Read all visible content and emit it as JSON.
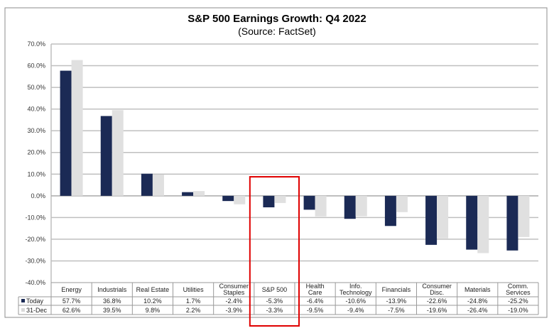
{
  "chart_data": {
    "type": "bar",
    "title": "S&P 500 Earnings Growth: Q4 2022",
    "subtitle": "(Source: FactSet)",
    "xlabel": "",
    "ylabel": "",
    "ylim": [
      -40,
      70
    ],
    "yticks": [
      70,
      60,
      50,
      40,
      30,
      20,
      10,
      0,
      -10,
      -20,
      -30,
      -40
    ],
    "ytick_labels": [
      "70.0%",
      "60.0%",
      "50.0%",
      "40.0%",
      "30.0%",
      "20.0%",
      "10.0%",
      "0.0%",
      "-10.0%",
      "-20.0%",
      "-30.0%",
      "-40.0%"
    ],
    "grid": true,
    "legend_placement": "data-table-left",
    "categories": [
      [
        "Energy"
      ],
      [
        "Industrials"
      ],
      [
        "Real Estate"
      ],
      [
        "Utilities"
      ],
      [
        "Consumer",
        "Staples"
      ],
      [
        "S&P 500"
      ],
      [
        "Health",
        "Care"
      ],
      [
        "Info.",
        "Technology"
      ],
      [
        "Financials"
      ],
      [
        "Consumer",
        "Disc."
      ],
      [
        "Materials"
      ],
      [
        "Comm.",
        "Services"
      ]
    ],
    "series": [
      {
        "name": "Today",
        "color": "#1b2a55",
        "values": [
          57.7,
          36.8,
          10.2,
          1.7,
          -2.4,
          -5.3,
          -6.4,
          -10.6,
          -13.9,
          -22.6,
          -24.8,
          -25.2
        ],
        "labels": [
          "57.7%",
          "36.8%",
          "10.2%",
          "1.7%",
          "-2.4%",
          "-5.3%",
          "-6.4%",
          "-10.6%",
          "-13.9%",
          "-22.6%",
          "-24.8%",
          "-25.2%"
        ]
      },
      {
        "name": "31-Dec",
        "color": "#e0e0e0",
        "values": [
          62.6,
          39.5,
          9.8,
          2.2,
          -3.9,
          -3.3,
          -9.5,
          -9.4,
          -7.5,
          -19.6,
          -26.4,
          -19.0
        ],
        "labels": [
          "62.6%",
          "39.5%",
          "9.8%",
          "2.2%",
          "-3.9%",
          "-3.3%",
          "-9.5%",
          "-9.4%",
          "-7.5%",
          "-19.6%",
          "-26.4%",
          "-19.0%"
        ]
      }
    ],
    "annotations": [
      {
        "type": "highlight-box",
        "target_category": "S&P 500",
        "color": "#e00000"
      }
    ]
  },
  "colors": {
    "gridline": "#bfbfbf",
    "frame": "#8c8c8c",
    "highlight": "#e00000"
  }
}
